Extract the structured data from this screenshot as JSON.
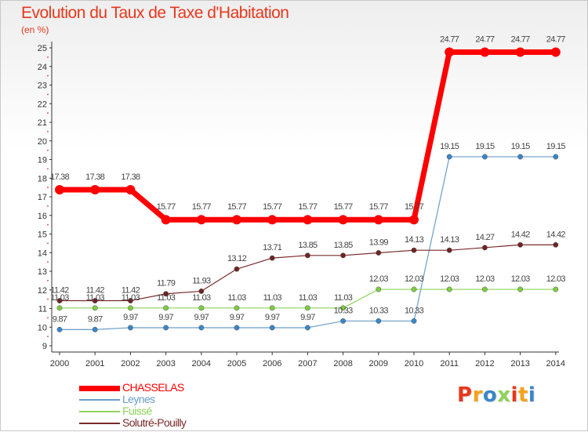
{
  "chart_data": {
    "type": "line",
    "title": "Evolution du Taux de Taxe d'Habitation",
    "unit": "(en %)",
    "xlabel": "",
    "ylabel": "",
    "ylim": [
      9,
      25
    ],
    "yticks": [
      9,
      10,
      11,
      12,
      13,
      14,
      15,
      16,
      17,
      18,
      19,
      20,
      21,
      22,
      23,
      24,
      25
    ],
    "grid": false,
    "legend_position": "bottom-left",
    "categories": [
      "2000",
      "2001",
      "2002",
      "2003",
      "2004",
      "2005",
      "2006",
      "2007",
      "2008",
      "2009",
      "2010",
      "2011",
      "2012",
      "2013",
      "2014"
    ],
    "series": [
      {
        "name": "CHASSELAS",
        "color": "#ff0000",
        "emphasis": true,
        "values": [
          17.38,
          17.38,
          17.38,
          15.77,
          15.77,
          15.77,
          15.77,
          15.77,
          15.77,
          15.77,
          15.77,
          24.77,
          24.77,
          24.77,
          24.77
        ],
        "labels": [
          "17.38",
          "17.38",
          "17.38",
          "15.77",
          "15.77",
          "15.77",
          "15.77",
          "15.77",
          "15.77",
          "15.77",
          "15.77",
          "24.77",
          "24.77",
          "24.77",
          "24.77"
        ]
      },
      {
        "name": "Leynes",
        "color": "#6a9ec8",
        "point_color": "#3a86c8",
        "values": [
          9.87,
          9.87,
          9.97,
          9.97,
          9.97,
          9.97,
          9.97,
          9.97,
          10.33,
          10.33,
          10.33,
          19.15,
          19.15,
          19.15,
          19.15
        ],
        "labels": [
          "9.87",
          "9.87",
          "9.97",
          "9.97",
          "9.97",
          "9.97",
          "9.97",
          "9.97",
          "10.33",
          "10.33",
          "10.33",
          "19.15",
          "19.15",
          "19.15",
          "19.15"
        ]
      },
      {
        "name": "Fuissé",
        "color": "#8ed35a",
        "point_color": "#7dcb43",
        "values": [
          11.03,
          11.03,
          11.03,
          11.03,
          11.03,
          11.03,
          11.03,
          11.03,
          11.03,
          12.03,
          12.03,
          12.03,
          12.03,
          12.03,
          12.03
        ],
        "labels": [
          "11.03",
          "11.03",
          "11.03",
          "11.03",
          "11.03",
          "11.03",
          "11.03",
          "11.03",
          "11.03",
          "12.03",
          "12.03",
          "12.03",
          "12.03",
          "12.03",
          "12.03"
        ]
      },
      {
        "name": "Solutré-Pouilly",
        "color": "#7a2a2a",
        "point_color": "#6e2424",
        "values": [
          11.42,
          11.42,
          11.42,
          11.79,
          11.93,
          13.12,
          13.71,
          13.85,
          13.85,
          13.99,
          14.13,
          14.13,
          14.27,
          14.42,
          14.42
        ],
        "labels": [
          "11.42",
          "11.42",
          "11.42",
          "11.79",
          "11.93",
          "13.12",
          "13.71",
          "13.85",
          "13.85",
          "13.99",
          "14.13",
          "14.13",
          "14.27",
          "14.42",
          "14.42"
        ]
      }
    ]
  },
  "branding": {
    "logo_letters": [
      "P",
      "r",
      "o",
      "x",
      "i",
      "t",
      "i"
    ],
    "logo_colors": [
      "#e8371c",
      "#f7a11a",
      "#3a86c8",
      "#8ed35a",
      "#e8371c",
      "#f7a11a",
      "#3a86c8"
    ]
  }
}
